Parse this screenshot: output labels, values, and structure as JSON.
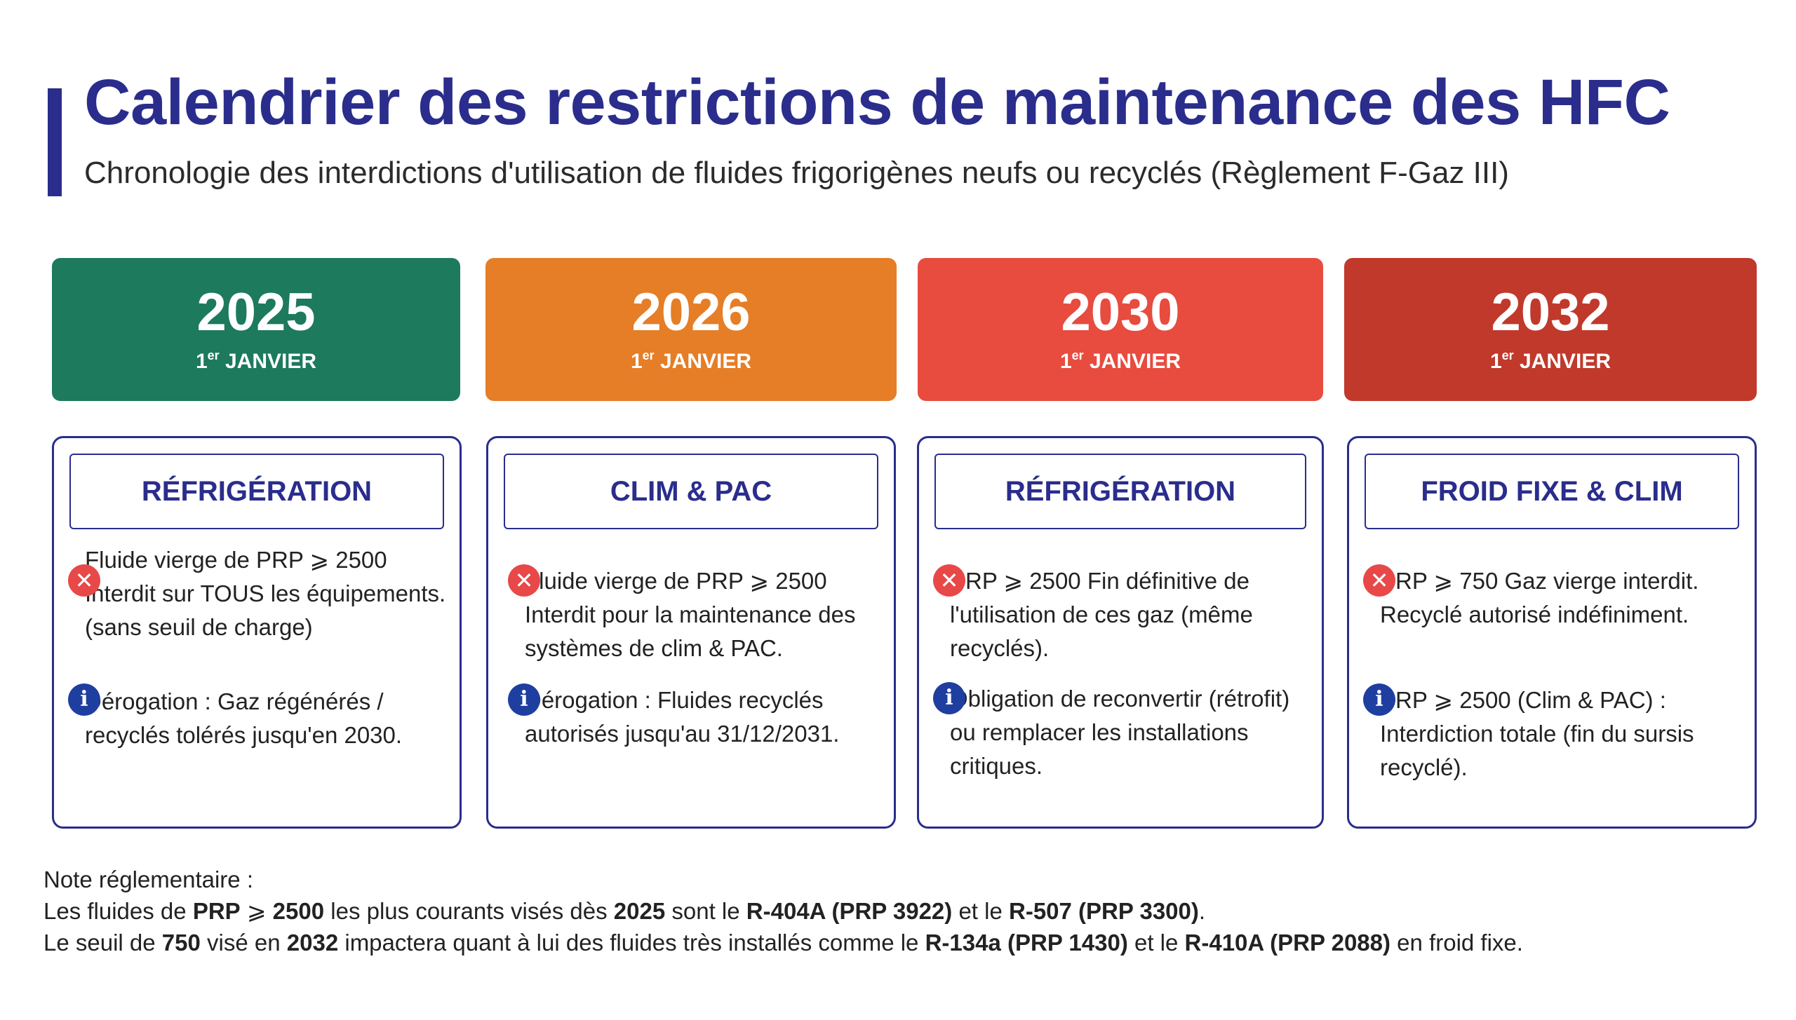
{
  "header": {
    "title": "Calendrier des restrictions de maintenance des HFC",
    "subtitle": "Chronologie des interdictions d'utilisation de fluides frigorigènes neufs ou recyclés (Règlement F-Gaz III)"
  },
  "columns": [
    {
      "year": "2025",
      "ordinal": "1",
      "ordinal_sup": "er",
      "date": "JANVIER",
      "color": "#1d7a5c",
      "category": "RÉFRIGÉRATION",
      "ban_text": "Fluide vierge de PRP ⩾ 2500 Interdit sur TOUS les équipements. (sans seuil de charge)",
      "info_text": "Dérogation : Gaz régénérés / recyclés tolérés jusqu'en 2030."
    },
    {
      "year": "2026",
      "ordinal": "1",
      "ordinal_sup": "er",
      "date": "JANVIER",
      "color": "#e57e26",
      "category": "CLIM & PAC",
      "ban_text": "Fluide vierge de PRP ⩾ 2500 Interdit pour la maintenance des systèmes de clim & PAC.",
      "info_text": "Dérogation : Fluides recyclés autorisés jusqu'au 31/12/2031."
    },
    {
      "year": "2030",
      "ordinal": "1",
      "ordinal_sup": "er",
      "date": "JANVIER",
      "color": "#e74c3f",
      "category": "RÉFRIGÉRATION",
      "ban_text": "PRP ⩾ 2500 Fin définitive de l'utilisation de ces gaz (même recyclés).",
      "info_text": "Obligation de reconvertir (rétrofit) ou remplacer les installations critiques."
    },
    {
      "year": "2032",
      "ordinal": "1",
      "ordinal_sup": "er",
      "date": "JANVIER",
      "color": "#c0392b",
      "category": "FROID FIXE & CLIM",
      "ban_text": "PRP ⩾ 750 Gaz vierge interdit. Recyclé autorisé indéfiniment.",
      "info_text": "PRP ⩾ 2500 (Clim & PAC) : Interdiction totale (fin du sursis recyclé)."
    }
  ],
  "icons": {
    "ban": "ban-icon",
    "info": "info-icon"
  },
  "note": {
    "heading": "Note réglementaire :",
    "l1": [
      "Les fluides de ",
      "PRP",
      " ⩾ ",
      "2500",
      " les plus courants visés dès ",
      "2025",
      " sont le ",
      "R-404A (PRP 3922)",
      " et le ",
      "R-507 (PRP 3300)",
      "."
    ],
    "l2": [
      "Le seuil de ",
      "750",
      " visé en ",
      "2032",
      " impactera quant à lui des fluides très installés comme le ",
      "R-134a (PRP 1430)",
      " et le ",
      "R-410A (PRP 2088)",
      " en froid fixe."
    ]
  }
}
